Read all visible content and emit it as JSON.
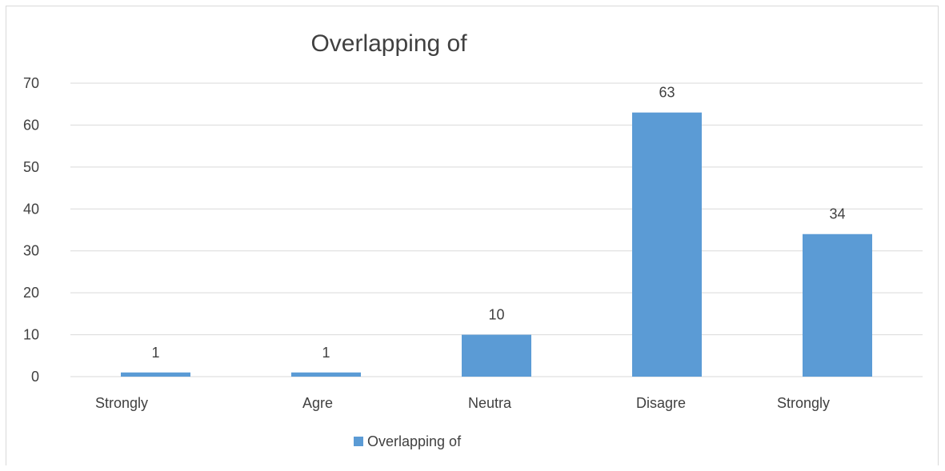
{
  "chart_data": {
    "type": "bar",
    "title": "Overlapping of",
    "categories": [
      "Strongly",
      "Agre",
      "Neutra",
      "Disagre",
      "Strongly"
    ],
    "series": [
      {
        "name": "Overlapping of",
        "values": [
          1,
          1,
          10,
          63,
          34
        ]
      }
    ],
    "xlabel": "",
    "ylabel": "",
    "ylim": [
      0,
      70
    ],
    "yticks": [
      0,
      10,
      20,
      30,
      40,
      50,
      60,
      70
    ],
    "grid": true,
    "legend": "bottom",
    "colors": {
      "bar": "#5b9bd5",
      "grid": "#d9d9d9",
      "text": "#404040"
    }
  }
}
